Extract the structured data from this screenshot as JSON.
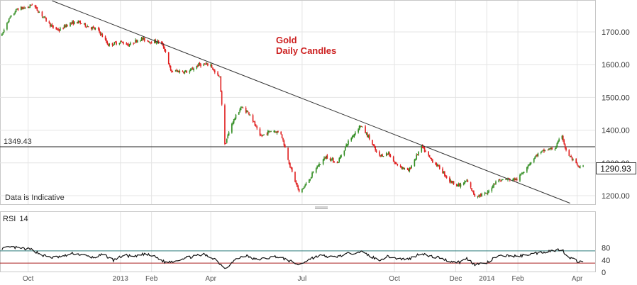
{
  "chart_data": [
    {
      "type": "candlestick",
      "title": "Gold",
      "subtitle": "Daily Candles",
      "note": "Data is Indicative",
      "reference_line": {
        "label": "1349.43",
        "value": 1349.43
      },
      "last_price": "1290.93",
      "ylim": [
        1180,
        1790
      ],
      "y_ticks": [
        "1700.00",
        "1600.00",
        "1500.00",
        "1400.00",
        "1300.00",
        "1200.00"
      ],
      "y_tick_values": [
        1700,
        1600,
        1500,
        1400,
        1300,
        1200
      ],
      "x_ticks": [
        {
          "label": "Oct",
          "date": "2012-10-01",
          "year": false
        },
        {
          "label": "2013",
          "date": "2013-01-01",
          "year": true
        },
        {
          "label": "Feb",
          "date": "2013-02-01",
          "year": false
        },
        {
          "label": "Apr",
          "date": "2013-04-01",
          "year": false
        },
        {
          "label": "Jul",
          "date": "2013-07-01",
          "year": false
        },
        {
          "label": "Oct",
          "date": "2013-10-01",
          "year": false
        },
        {
          "label": "Dec",
          "date": "2013-12-01",
          "year": false
        },
        {
          "label": "2014",
          "date": "2014-01-01",
          "year": true
        },
        {
          "label": "Feb",
          "date": "2014-02-01",
          "year": false
        },
        {
          "label": "Apr",
          "date": "2014-04-01",
          "year": false
        }
      ],
      "x_range": [
        "2012-09-03",
        "2014-04-14"
      ],
      "trendline": {
        "from": [
          "2012-10-25",
          1795
        ],
        "to": [
          "2014-03-25",
          1177
        ]
      },
      "price_path": [
        [
          "2012-09-05",
          1690
        ],
        [
          "2012-09-10",
          1730
        ],
        [
          "2012-09-20",
          1770
        ],
        [
          "2012-10-01",
          1775
        ],
        [
          "2012-10-05",
          1785
        ],
        [
          "2012-10-15",
          1750
        ],
        [
          "2012-10-25",
          1715
        ],
        [
          "2012-11-01",
          1705
        ],
        [
          "2012-11-10",
          1725
        ],
        [
          "2012-11-20",
          1730
        ],
        [
          "2012-12-01",
          1715
        ],
        [
          "2012-12-10",
          1705
        ],
        [
          "2012-12-20",
          1660
        ],
        [
          "2013-01-01",
          1670
        ],
        [
          "2013-01-10",
          1660
        ],
        [
          "2013-01-20",
          1680
        ],
        [
          "2013-02-01",
          1670
        ],
        [
          "2013-02-10",
          1670
        ],
        [
          "2013-02-15",
          1640
        ],
        [
          "2013-02-20",
          1580
        ],
        [
          "2013-03-01",
          1580
        ],
        [
          "2013-03-10",
          1578
        ],
        [
          "2013-03-20",
          1600
        ],
        [
          "2013-04-01",
          1600
        ],
        [
          "2013-04-05",
          1575
        ],
        [
          "2013-04-10",
          1560
        ],
        [
          "2013-04-12",
          1480
        ],
        [
          "2013-04-15",
          1355
        ],
        [
          "2013-04-22",
          1420
        ],
        [
          "2013-05-01",
          1470
        ],
        [
          "2013-05-10",
          1450
        ],
        [
          "2013-05-20",
          1380
        ],
        [
          "2013-06-01",
          1400
        ],
        [
          "2013-06-10",
          1390
        ],
        [
          "2013-06-20",
          1280
        ],
        [
          "2013-06-28",
          1210
        ],
        [
          "2013-07-05",
          1235
        ],
        [
          "2013-07-15",
          1285
        ],
        [
          "2013-07-25",
          1320
        ],
        [
          "2013-08-05",
          1300
        ],
        [
          "2013-08-15",
          1360
        ],
        [
          "2013-08-28",
          1415
        ],
        [
          "2013-09-05",
          1380
        ],
        [
          "2013-09-15",
          1320
        ],
        [
          "2013-09-25",
          1330
        ],
        [
          "2013-10-01",
          1300
        ],
        [
          "2013-10-15",
          1275
        ],
        [
          "2013-10-28",
          1350
        ],
        [
          "2013-11-05",
          1315
        ],
        [
          "2013-11-15",
          1285
        ],
        [
          "2013-11-25",
          1245
        ],
        [
          "2013-12-05",
          1230
        ],
        [
          "2013-12-12",
          1245
        ],
        [
          "2013-12-20",
          1200
        ],
        [
          "2014-01-01",
          1205
        ],
        [
          "2014-01-10",
          1245
        ],
        [
          "2014-01-20",
          1250
        ],
        [
          "2014-02-01",
          1250
        ],
        [
          "2014-02-10",
          1290
        ],
        [
          "2014-02-20",
          1325
        ],
        [
          "2014-03-01",
          1340
        ],
        [
          "2014-03-10",
          1345
        ],
        [
          "2014-03-17",
          1385
        ],
        [
          "2014-03-21",
          1335
        ],
        [
          "2014-03-31",
          1295
        ],
        [
          "2014-04-03",
          1285
        ],
        [
          "2014-04-07",
          1290
        ]
      ],
      "colors": {
        "up": "#2e8b1e",
        "down": "#e02020",
        "trendline": "#333333",
        "reference": "#222222"
      }
    },
    {
      "type": "line",
      "title": "RSI",
      "period": "14",
      "ylim": [
        0,
        100
      ],
      "y_ticks": [
        "80",
        "40",
        "0"
      ],
      "y_tick_values": [
        80,
        40,
        0
      ],
      "levels": [
        {
          "value": 70,
          "color": "#2a7a7a"
        },
        {
          "value": 30,
          "color": "#aa2020"
        }
      ],
      "rsi_path": [
        [
          "2012-09-05",
          78
        ],
        [
          "2012-09-15",
          82
        ],
        [
          "2012-09-25",
          78
        ],
        [
          "2012-10-05",
          74
        ],
        [
          "2012-10-15",
          56
        ],
        [
          "2012-10-25",
          48
        ],
        [
          "2012-11-05",
          52
        ],
        [
          "2012-11-15",
          62
        ],
        [
          "2012-11-25",
          56
        ],
        [
          "2012-12-05",
          48
        ],
        [
          "2012-12-15",
          58
        ],
        [
          "2012-12-25",
          40
        ],
        [
          "2013-01-05",
          56
        ],
        [
          "2013-01-15",
          50
        ],
        [
          "2013-01-25",
          60
        ],
        [
          "2013-02-05",
          50
        ],
        [
          "2013-02-15",
          32
        ],
        [
          "2013-02-25",
          38
        ],
        [
          "2013-03-05",
          46
        ],
        [
          "2013-03-15",
          52
        ],
        [
          "2013-03-25",
          58
        ],
        [
          "2013-04-05",
          44
        ],
        [
          "2013-04-12",
          22
        ],
        [
          "2013-04-16",
          14
        ],
        [
          "2013-04-25",
          40
        ],
        [
          "2013-05-05",
          56
        ],
        [
          "2013-05-15",
          42
        ],
        [
          "2013-05-25",
          45
        ],
        [
          "2013-06-05",
          52
        ],
        [
          "2013-06-15",
          42
        ],
        [
          "2013-06-28",
          24
        ],
        [
          "2013-07-10",
          46
        ],
        [
          "2013-07-20",
          55
        ],
        [
          "2013-08-01",
          49
        ],
        [
          "2013-08-15",
          60
        ],
        [
          "2013-08-28",
          68
        ],
        [
          "2013-09-05",
          56
        ],
        [
          "2013-09-15",
          40
        ],
        [
          "2013-09-25",
          52
        ],
        [
          "2013-10-05",
          44
        ],
        [
          "2013-10-15",
          43
        ],
        [
          "2013-10-28",
          63
        ],
        [
          "2013-11-05",
          52
        ],
        [
          "2013-11-15",
          48
        ],
        [
          "2013-11-25",
          36
        ],
        [
          "2013-12-05",
          33
        ],
        [
          "2013-12-12",
          45
        ],
        [
          "2013-12-20",
          26
        ],
        [
          "2014-01-01",
          30
        ],
        [
          "2014-01-10",
          50
        ],
        [
          "2014-01-20",
          55
        ],
        [
          "2014-02-01",
          52
        ],
        [
          "2014-02-10",
          58
        ],
        [
          "2014-02-20",
          63
        ],
        [
          "2014-03-01",
          68
        ],
        [
          "2014-03-10",
          72
        ],
        [
          "2014-03-17",
          76
        ],
        [
          "2014-03-21",
          56
        ],
        [
          "2014-03-31",
          38
        ],
        [
          "2014-04-03",
          34
        ],
        [
          "2014-04-07",
          38
        ]
      ],
      "colors": {
        "line": "#111111"
      }
    }
  ]
}
